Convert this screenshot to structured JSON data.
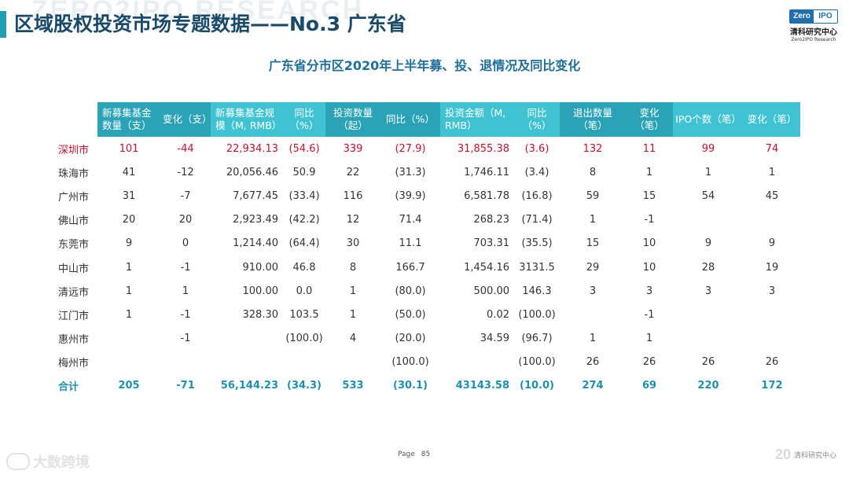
{
  "header": {
    "title": "区域股权投资市场专题数据——No.3 广东省",
    "watermark": "ZERO2IPO RESEARCH",
    "logo": {
      "zero": "Zero",
      "ipo": "IPO",
      "cn": "清科研究中心",
      "en": "Zero2IPO Research"
    }
  },
  "subtitle": "广东省分市区2020年上半年募、投、退情况及同比变化",
  "table": {
    "headers": [
      "新募集基金数量（支）",
      "变化（支）",
      "新募集基金规模（M, RMB）",
      "同比（%）",
      "投资数量（起）",
      "同比（%）",
      "投资金额（M, RMB）",
      "同比（%）",
      "退出数量（笔）",
      "变化（笔）",
      "IPO个数（笔）",
      "变化（笔）"
    ],
    "rows": [
      [
        "深圳市",
        "101",
        "-44",
        "22,934.13",
        "(54.6)",
        "339",
        "(27.9)",
        "31,855.38",
        "(3.6)",
        "132",
        "11",
        "99",
        "74"
      ],
      [
        "珠海市",
        "41",
        "-12",
        "20,056.46",
        "50.9",
        "22",
        "(31.3)",
        "1,746.11",
        "(3.4)",
        "8",
        "1",
        "1",
        "1"
      ],
      [
        "广州市",
        "31",
        "-7",
        "7,677.45",
        "(33.4)",
        "116",
        "(39.9)",
        "6,581.78",
        "(16.8)",
        "59",
        "15",
        "54",
        "45"
      ],
      [
        "佛山市",
        "20",
        "20",
        "2,923.49",
        "(42.2)",
        "12",
        "71.4",
        "268.23",
        "(71.4)",
        "1",
        "-1",
        "",
        ""
      ],
      [
        "东莞市",
        "9",
        "0",
        "1,214.40",
        "(64.4)",
        "30",
        "11.1",
        "703.31",
        "(35.5)",
        "15",
        "10",
        "9",
        "9"
      ],
      [
        "中山市",
        "1",
        "-1",
        "910.00",
        "46.8",
        "8",
        "166.7",
        "1,454.16",
        "3131.5",
        "29",
        "10",
        "28",
        "19"
      ],
      [
        "清远市",
        "1",
        "1",
        "100.00",
        "0.0",
        "1",
        "(80.0)",
        "500.00",
        "146.3",
        "3",
        "3",
        "3",
        "3"
      ],
      [
        "江门市",
        "1",
        "-1",
        "328.30",
        "103.5",
        "1",
        "(50.0)",
        "0.02",
        "(100.0)",
        "",
        "-1",
        "",
        ""
      ],
      [
        "惠州市",
        "",
        "-1",
        "",
        "(100.0)",
        "4",
        "(20.0)",
        "34.59",
        "(96.7)",
        "1",
        "1",
        "",
        ""
      ],
      [
        "梅州市",
        "",
        "",
        "",
        "",
        "",
        "(100.0)",
        "",
        "(100.0)",
        "26",
        "26",
        "26",
        "26"
      ]
    ],
    "total": [
      "合计",
      "205",
      "-71",
      "56,144.23",
      "(34.3)",
      "533",
      "(30.1)",
      "43143.58",
      "(10.0)",
      "274",
      "69",
      "220",
      "172"
    ]
  },
  "footer": {
    "page_label": "Page",
    "page_number": "85",
    "watermark_left": "大数跨境",
    "right_deco": "20",
    "right_name": "清科研究中心"
  },
  "colors": {
    "header_dark": "#2aa3b7",
    "header_light": "#3fc3d3",
    "highlight_row": "#c8102e",
    "total_row": "#1f8fb0",
    "title": "#1a4a6a"
  }
}
